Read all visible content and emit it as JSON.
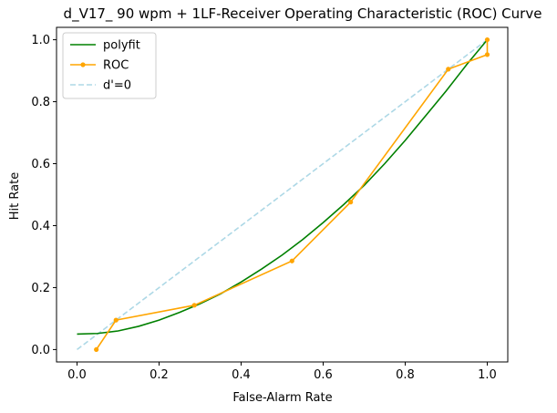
{
  "chart_data": {
    "type": "line",
    "title": "d_V17_ 90 wpm + 1LF-Receiver Operating Characteristic (ROC) Curve",
    "xlabel": "False-Alarm Rate",
    "ylabel": "Hit Rate",
    "xlim": [
      -0.05,
      1.05
    ],
    "ylim": [
      -0.04,
      1.04
    ],
    "xticks": [
      0.0,
      0.2,
      0.4,
      0.6,
      0.8,
      1.0
    ],
    "xtick_labels": [
      "0.0",
      "0.2",
      "0.4",
      "0.6",
      "0.8",
      "1.0"
    ],
    "yticks": [
      0.0,
      0.2,
      0.4,
      0.6,
      0.8,
      1.0
    ],
    "ytick_labels": [
      "0.0",
      "0.2",
      "0.4",
      "0.6",
      "0.8",
      "1.0"
    ],
    "grid": false,
    "legend_position": "top-left",
    "series": [
      {
        "name": "polyfit",
        "kind": "curve",
        "color": "#008000",
        "style": "solid",
        "x": [
          0.0,
          0.05,
          0.1,
          0.15,
          0.2,
          0.25,
          0.3,
          0.35,
          0.4,
          0.45,
          0.5,
          0.55,
          0.6,
          0.65,
          0.7,
          0.75,
          0.8,
          0.85,
          0.9,
          0.95,
          1.0
        ],
        "y": [
          0.05,
          0.052,
          0.06,
          0.075,
          0.095,
          0.12,
          0.148,
          0.18,
          0.218,
          0.26,
          0.305,
          0.355,
          0.41,
          0.468,
          0.53,
          0.6,
          0.675,
          0.755,
          0.835,
          0.92,
          1.0
        ]
      },
      {
        "name": "ROC",
        "kind": "line-markers",
        "color": "#FFA500",
        "style": "solid",
        "x": [
          0.047,
          0.095,
          0.286,
          0.524,
          0.667,
          0.905,
          1.0,
          1.0
        ],
        "y": [
          0.0,
          0.095,
          0.143,
          0.286,
          0.476,
          0.905,
          0.952,
          1.0
        ]
      },
      {
        "name": "d'=0",
        "kind": "reference",
        "color": "#ADD8E6",
        "style": "dashed",
        "x": [
          0.0,
          1.0
        ],
        "y": [
          0.0,
          1.0
        ]
      }
    ]
  }
}
